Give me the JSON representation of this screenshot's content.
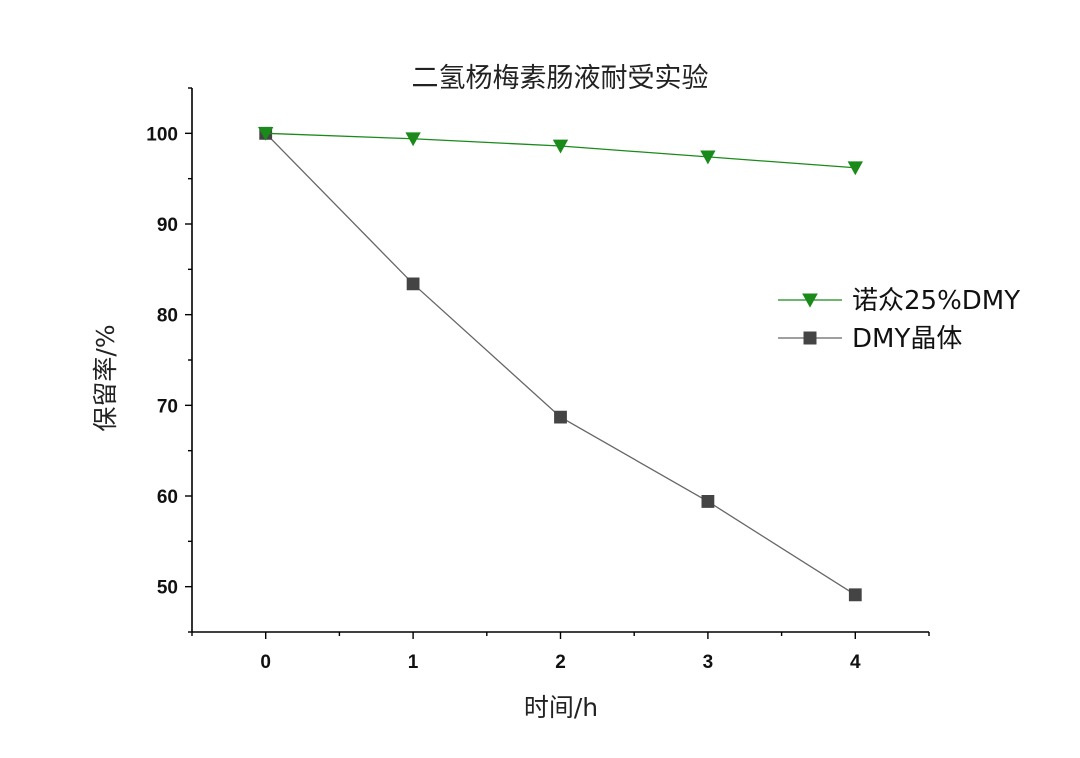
{
  "chart_data": {
    "type": "line",
    "title": "二氢杨梅素肠液耐受实验",
    "xlabel": "时间/h",
    "ylabel": "保留率/%",
    "x": [
      0,
      1,
      2,
      3,
      4
    ],
    "xlim": [
      -0.5,
      4.5
    ],
    "ylim": [
      45,
      105
    ],
    "xticks": [
      0,
      1,
      2,
      3,
      4
    ],
    "yticks": [
      50,
      60,
      70,
      80,
      90,
      100
    ],
    "legend_position": "right",
    "grid": false,
    "series": [
      {
        "name": "诺众25%DMY",
        "values": [
          100,
          99.4,
          98.6,
          97.4,
          96.2
        ],
        "color": "#1a8a1a",
        "marker": "triangle-down"
      },
      {
        "name": "DMY晶体",
        "values": [
          100,
          83.4,
          68.7,
          59.4,
          49.1
        ],
        "color": "#444444",
        "marker": "square"
      }
    ]
  }
}
